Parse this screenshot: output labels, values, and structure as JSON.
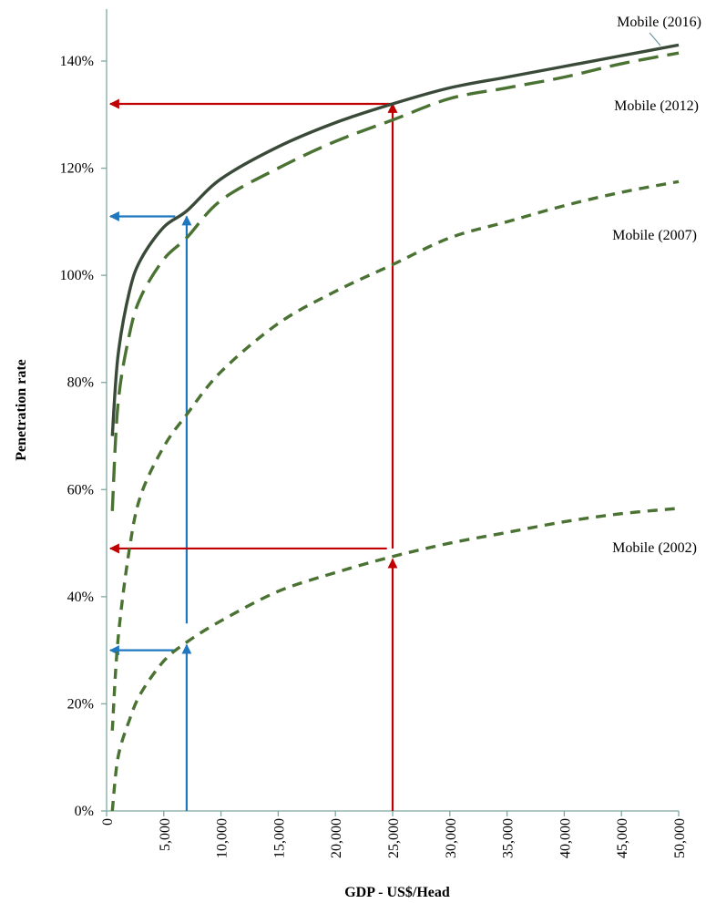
{
  "chart_data": {
    "type": "line",
    "xlabel": "GDP - US$/Head",
    "ylabel": "Penetration rate",
    "xlim": [
      0,
      50000
    ],
    "ylim": [
      0,
      1.4
    ],
    "x_ticks": [
      0,
      5000,
      10000,
      15000,
      20000,
      25000,
      30000,
      35000,
      40000,
      45000,
      50000
    ],
    "x_tick_labels": [
      "0",
      "5,000",
      "10,000",
      "15,000",
      "20,000",
      "25,000",
      "30,000",
      "35,000",
      "40,000",
      "45,000",
      "50,000"
    ],
    "y_ticks": [
      0,
      0.2,
      0.4,
      0.6,
      0.8,
      1.0,
      1.2,
      1.4
    ],
    "y_tick_labels": [
      "0%",
      "20%",
      "40%",
      "60%",
      "80%",
      "100%",
      "120%",
      "140%"
    ],
    "grid": false,
    "series": [
      {
        "name": "Mobile (2016)",
        "style": "solid",
        "color": "#3a4a38",
        "x": [
          500,
          1000,
          2000,
          3000,
          5000,
          7000,
          10000,
          15000,
          20000,
          25000,
          30000,
          35000,
          40000,
          45000,
          50000
        ],
        "y": [
          0.7,
          0.85,
          0.97,
          1.03,
          1.09,
          1.12,
          1.18,
          1.24,
          1.285,
          1.32,
          1.35,
          1.37,
          1.39,
          1.41,
          1.43
        ]
      },
      {
        "name": "Mobile (2012)",
        "style": "long-dash",
        "color": "#4a7232",
        "x": [
          500,
          1000,
          2000,
          3000,
          5000,
          7000,
          10000,
          15000,
          20000,
          25000,
          30000,
          35000,
          40000,
          45000,
          50000
        ],
        "y": [
          0.56,
          0.76,
          0.89,
          0.96,
          1.03,
          1.07,
          1.14,
          1.2,
          1.25,
          1.29,
          1.33,
          1.35,
          1.37,
          1.395,
          1.415
        ]
      },
      {
        "name": "Mobile (2007)",
        "style": "dash",
        "color": "#4a7232",
        "x": [
          500,
          1000,
          2000,
          3000,
          5000,
          7000,
          10000,
          15000,
          20000,
          25000,
          30000,
          35000,
          40000,
          45000,
          50000
        ],
        "y": [
          0.15,
          0.32,
          0.49,
          0.59,
          0.68,
          0.74,
          0.82,
          0.91,
          0.97,
          1.02,
          1.07,
          1.1,
          1.13,
          1.155,
          1.175
        ]
      },
      {
        "name": "Mobile (2002)",
        "style": "dash",
        "color": "#4a7232",
        "x": [
          500,
          1000,
          2000,
          3000,
          5000,
          7000,
          10000,
          15000,
          20000,
          25000,
          30000,
          35000,
          40000,
          45000,
          50000
        ],
        "y": [
          0.0,
          0.1,
          0.17,
          0.22,
          0.28,
          0.315,
          0.355,
          0.41,
          0.445,
          0.475,
          0.5,
          0.52,
          0.54,
          0.555,
          0.565
        ]
      }
    ],
    "annotations": {
      "blue_color": "#1f77c0",
      "red_color": "#c00000",
      "blue_vertical_x": 7000,
      "red_vertical_x": 25000,
      "blue_upward_arrows": [
        {
          "x": 7000,
          "from_y": 0,
          "to_y": 0.31
        },
        {
          "x": 7000,
          "from_y": 0.35,
          "to_y": 1.11
        }
      ],
      "red_upward_arrows": [
        {
          "x": 25000,
          "from_y": 0,
          "to_y": 0.47
        },
        {
          "x": 25000,
          "from_y": 0.49,
          "to_y": 1.32
        }
      ],
      "blue_leftward_arrows": [
        {
          "y": 1.11,
          "from_x": 6000
        },
        {
          "y": 0.3,
          "from_x": 6000
        }
      ],
      "red_leftward_arrows": [
        {
          "y": 1.32,
          "from_x": 25000
        },
        {
          "y": 0.49,
          "from_x": 24500
        }
      ]
    }
  }
}
